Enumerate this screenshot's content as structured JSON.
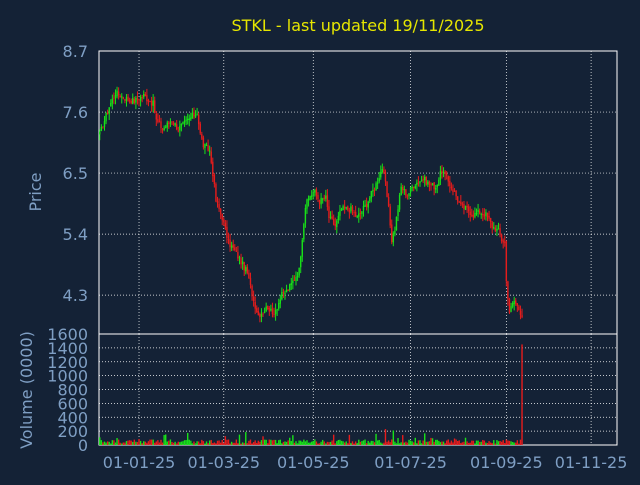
{
  "chart_data": [
    {
      "type": "candlestick",
      "title": "STKL - last updated 19/11/2025",
      "xlabel": "",
      "ylabel": "Price",
      "ylim": [
        3.6,
        8.7
      ],
      "y_ticks": [
        "8.7",
        "7.6",
        "6.5",
        "5.4",
        "4.3"
      ],
      "x_ticks": [
        "01-01-25",
        "01-03-25",
        "01-05-25",
        "01-07-25",
        "01-09-25",
        "01-11-25"
      ],
      "x_tick_positions": [
        25,
        79,
        136,
        198,
        259,
        313
      ],
      "n_bars": 330,
      "grid": true,
      "anchors": [
        [
          0,
          7.2
        ],
        [
          6,
          7.7
        ],
        [
          10,
          7.95
        ],
        [
          16,
          7.85
        ],
        [
          22,
          7.8
        ],
        [
          28,
          7.9
        ],
        [
          34,
          7.75
        ],
        [
          36,
          7.45
        ],
        [
          40,
          7.3
        ],
        [
          46,
          7.45
        ],
        [
          50,
          7.3
        ],
        [
          58,
          7.5
        ],
        [
          62,
          7.6
        ],
        [
          64,
          7.2
        ],
        [
          66,
          7.0
        ],
        [
          70,
          6.9
        ],
        [
          72,
          6.5
        ],
        [
          74,
          6.0
        ],
        [
          78,
          5.7
        ],
        [
          82,
          5.25
        ],
        [
          86,
          5.1
        ],
        [
          90,
          4.9
        ],
        [
          94,
          4.7
        ],
        [
          96,
          4.45
        ],
        [
          98,
          4.2
        ],
        [
          101,
          3.95
        ],
        [
          104,
          4.0
        ],
        [
          107,
          4.1
        ],
        [
          110,
          3.95
        ],
        [
          113,
          4.1
        ],
        [
          116,
          4.3
        ],
        [
          120,
          4.4
        ],
        [
          124,
          4.6
        ],
        [
          127,
          4.75
        ],
        [
          129,
          5.35
        ],
        [
          131,
          5.9
        ],
        [
          134,
          6.1
        ],
        [
          137,
          6.15
        ],
        [
          140,
          6.0
        ],
        [
          144,
          6.05
        ],
        [
          146,
          5.7
        ],
        [
          150,
          5.55
        ],
        [
          154,
          5.85
        ],
        [
          160,
          5.85
        ],
        [
          164,
          5.7
        ],
        [
          170,
          5.95
        ],
        [
          176,
          6.3
        ],
        [
          180,
          6.6
        ],
        [
          182,
          6.3
        ],
        [
          184,
          5.85
        ],
        [
          186,
          5.3
        ],
        [
          188,
          5.5
        ],
        [
          192,
          6.25
        ],
        [
          196,
          6.1
        ],
        [
          200,
          6.3
        ],
        [
          206,
          6.4
        ],
        [
          210,
          6.3
        ],
        [
          214,
          6.25
        ],
        [
          218,
          6.55
        ],
        [
          222,
          6.35
        ],
        [
          226,
          6.15
        ],
        [
          230,
          5.9
        ],
        [
          234,
          5.85
        ],
        [
          238,
          5.75
        ],
        [
          242,
          5.8
        ],
        [
          246,
          5.75
        ],
        [
          250,
          5.55
        ],
        [
          254,
          5.45
        ],
        [
          256,
          5.3
        ],
        [
          258,
          5.25
        ],
        [
          259,
          4.55
        ],
        [
          261,
          4.0
        ],
        [
          264,
          4.2
        ],
        [
          267,
          4.05
        ],
        [
          269,
          3.95
        ]
      ],
      "volume_spikes": [
        [
          269,
          1450
        ],
        [
          271,
          260
        ],
        [
          182,
          230
        ],
        [
          187,
          210
        ]
      ],
      "colors": {
        "up": "#18e018",
        "down": "#e51c1c",
        "grid": "#ffffff",
        "background": "#142236",
        "title": "#e6e600",
        "axis_text": "#7f9fc4"
      }
    },
    {
      "type": "bar",
      "title": "",
      "xlabel": "",
      "ylabel": "Volume (0000)",
      "ylim": [
        0,
        1600
      ],
      "y_ticks": [
        "1600",
        "1400",
        "1200",
        "1000",
        "800",
        "600",
        "400",
        "200",
        "0"
      ],
      "grid": true
    }
  ]
}
